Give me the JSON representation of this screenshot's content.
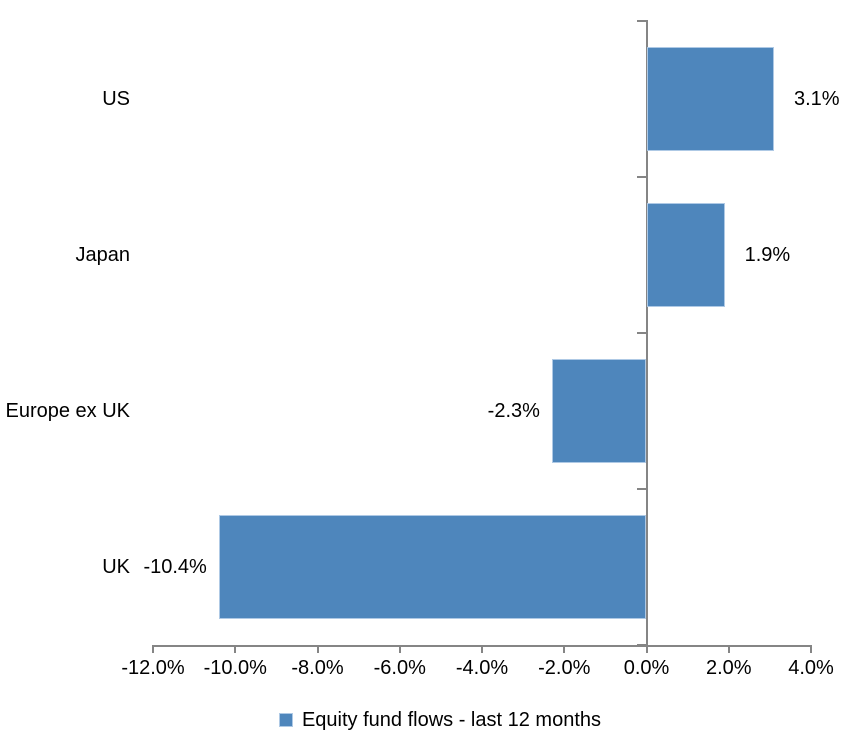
{
  "chart_data": {
    "type": "bar",
    "orientation": "horizontal",
    "title": "",
    "categories": [
      "US",
      "Japan",
      "Europe ex UK",
      "UK"
    ],
    "values": [
      3.1,
      1.9,
      -2.3,
      -10.4
    ],
    "data_labels": [
      "3.1%",
      "1.9%",
      "-2.3%",
      "-10.4%"
    ],
    "xlim": [
      -12,
      4
    ],
    "x_ticks": [
      -12,
      -10,
      -8,
      -6,
      -4,
      -2,
      0,
      2,
      4
    ],
    "x_tick_labels": [
      "-12.0%",
      "-10.0%",
      "-8.0%",
      "-6.0%",
      "-4.0%",
      "-2.0%",
      "0.0%",
      "2.0%",
      "4.0%"
    ],
    "grid": false,
    "legend": "Equity fund flows - last 12 months",
    "legend_position": "bottom",
    "bar_color": "#4E86BC",
    "bar_border_color": "#AEC9E5",
    "axis_color": "#858585",
    "text_color": "#000000",
    "background_color": "#FFFFFF"
  }
}
